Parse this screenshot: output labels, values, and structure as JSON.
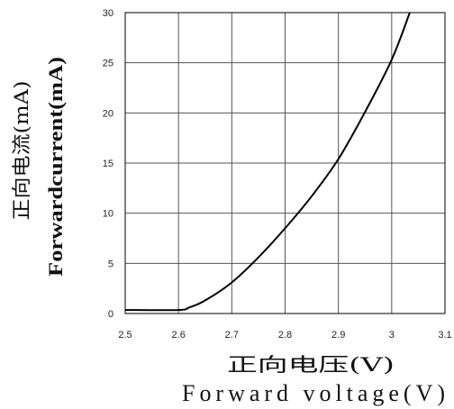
{
  "chart_data": {
    "type": "line",
    "xlabel": [
      "正向电压(V)",
      "Forward voltage(V)"
    ],
    "ylabel": [
      "正向电流(mA)",
      "Forwardcurrent(mA)"
    ],
    "xlim": [
      2.5,
      3.1
    ],
    "ylim": [
      0,
      30
    ],
    "xticks": [
      2.5,
      2.6,
      2.7,
      2.8,
      2.9,
      3.0,
      3.1
    ],
    "xtick_labels": [
      "2.5",
      "2.6",
      "2.7",
      "2.8",
      "2.9",
      "3",
      "3.1"
    ],
    "yticks": [
      0,
      5,
      10,
      15,
      20,
      25,
      30
    ],
    "ytick_labels": [
      "0",
      "5",
      "10",
      "15",
      "20",
      "25",
      "30"
    ],
    "grid": true,
    "legend": "none",
    "series": [
      {
        "x": [
          2.5,
          2.6,
          2.62,
          2.65,
          2.7,
          2.75,
          2.8,
          2.85,
          2.9,
          2.95,
          3.0,
          3.034
        ],
        "y": [
          0.35,
          0.35,
          0.6,
          1.3,
          3.1,
          5.6,
          8.5,
          11.7,
          15.4,
          20.1,
          25.3,
          30.0
        ]
      }
    ],
    "colors": {
      "line": "#000000",
      "grid": "#555555",
      "border": "#000000"
    }
  }
}
